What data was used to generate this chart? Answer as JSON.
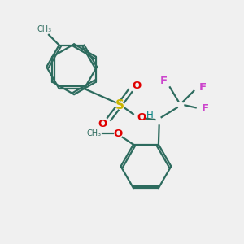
{
  "background_color": "#f0f0f0",
  "bond_color": "#2d6b5e",
  "S_color": "#c8b400",
  "O_color": "#e00000",
  "F_color": "#cc44cc",
  "H_color": "#008080",
  "figsize": [
    3.0,
    3.0
  ],
  "dpi": 100,
  "xlim": [
    0,
    10
  ],
  "ylim": [
    0,
    10
  ]
}
